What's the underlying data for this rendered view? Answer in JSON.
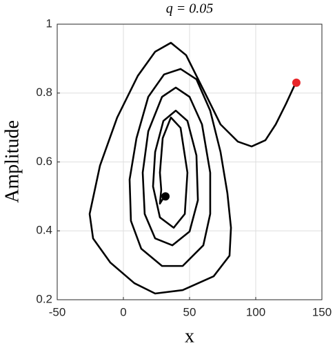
{
  "chart_data": {
    "type": "line",
    "title": "q = 0.05",
    "xlabel": "x",
    "ylabel": "Amplitude",
    "xlim": [
      -50,
      150
    ],
    "xticks": [
      -50,
      0,
      50,
      100,
      150
    ],
    "ylim": [
      0.2,
      1
    ],
    "yticks": [
      0.2,
      0.4,
      0.6,
      0.8,
      1
    ],
    "grid": true,
    "series": [
      {
        "color": "#000000",
        "x": [
          130.7,
          122.9,
          115.1,
          107.3,
          96.9,
          86.5,
          73.4,
          60.4,
          47.4,
          35.9,
          24.0,
          10.9,
          -4.7,
          -17.7,
          -25.5,
          -22.9,
          -9.9,
          8.3,
          24.0,
          44.8,
          68.2,
          80.2,
          81.3,
          78.6,
          73.4,
          65.6,
          55.2,
          43.2,
          30.7,
          18.8,
          9.9,
          4.7,
          5.7,
          13.5,
          29.2,
          44.8,
          60.4,
          65.6,
          65.6,
          59.4,
          50.0,
          39.6,
          29.2,
          18.8,
          14.6,
          16.1,
          24.0,
          37.0,
          50.0,
          56.3,
          55.2,
          48.4,
          39.6,
          30.2,
          24.0,
          22.4,
          27.6,
          38.0,
          46.4,
          48.4,
          43.2,
          35.9,
          29.7,
          27.6,
          28.6,
          27.6,
          30.2,
          31.8
        ],
        "values": [
          0.834,
          0.769,
          0.709,
          0.663,
          0.645,
          0.659,
          0.709,
          0.81,
          0.91,
          0.946,
          0.92,
          0.85,
          0.729,
          0.589,
          0.449,
          0.378,
          0.308,
          0.248,
          0.218,
          0.228,
          0.268,
          0.328,
          0.409,
          0.509,
          0.629,
          0.749,
          0.84,
          0.87,
          0.854,
          0.789,
          0.669,
          0.549,
          0.429,
          0.348,
          0.298,
          0.298,
          0.358,
          0.449,
          0.569,
          0.709,
          0.789,
          0.816,
          0.789,
          0.689,
          0.569,
          0.449,
          0.378,
          0.358,
          0.398,
          0.489,
          0.619,
          0.719,
          0.749,
          0.719,
          0.629,
          0.529,
          0.439,
          0.409,
          0.449,
          0.569,
          0.699,
          0.729,
          0.669,
          0.569,
          0.519,
          0.479,
          0.495,
          0.503
        ]
      }
    ],
    "markers": [
      {
        "x": 130.7,
        "y": 0.83,
        "color": "#e8262a"
      },
      {
        "x": 31.8,
        "y": 0.5,
        "color": "#000000"
      }
    ]
  }
}
